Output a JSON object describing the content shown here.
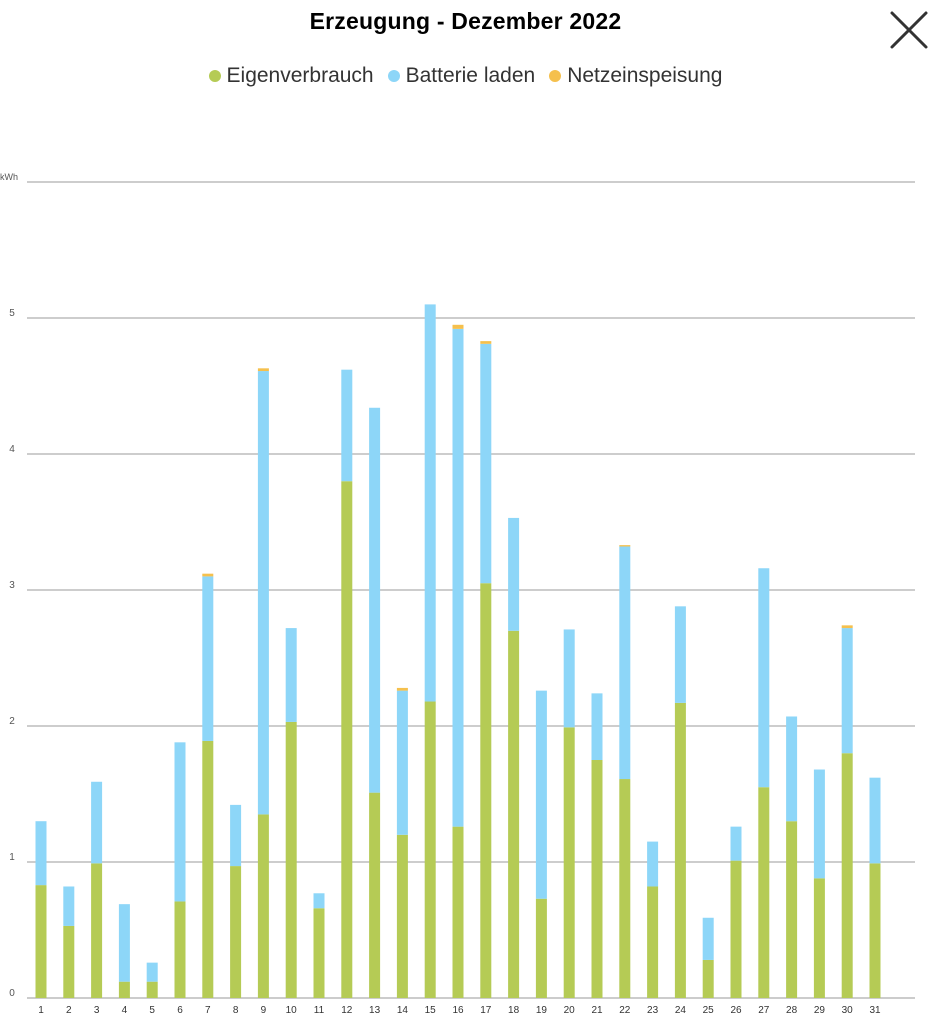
{
  "header": {
    "title": "Erzeugung - Dezember 2022",
    "close_icon": "close-icon"
  },
  "chart_data": {
    "type": "bar",
    "stacked": true,
    "title": "Erzeugung - Dezember 2022",
    "ylabel": "kWh",
    "xlabel": "",
    "ylim": [
      0,
      6
    ],
    "yticks": [
      "0",
      "1",
      "2",
      "3",
      "4",
      "5"
    ],
    "grid": true,
    "legend_position": "top",
    "categories": [
      "1",
      "2",
      "3",
      "4",
      "5",
      "6",
      "7",
      "8",
      "9",
      "10",
      "11",
      "12",
      "13",
      "14",
      "15",
      "16",
      "17",
      "18",
      "19",
      "20",
      "21",
      "22",
      "23",
      "24",
      "25",
      "26",
      "27",
      "28",
      "29",
      "30",
      "31"
    ],
    "series": [
      {
        "name": "Eigenverbrauch",
        "color": "#b5cb55",
        "values": [
          0.83,
          0.53,
          0.99,
          0.12,
          0.12,
          0.71,
          1.89,
          0.97,
          1.35,
          2.03,
          0.66,
          3.8,
          1.51,
          1.2,
          2.18,
          1.26,
          3.05,
          2.7,
          0.73,
          1.99,
          1.75,
          1.61,
          0.82,
          2.17,
          0.28,
          1.01,
          1.55,
          1.3,
          0.88,
          1.8,
          0.99
        ]
      },
      {
        "name": "Batterie laden",
        "color": "#8dd6f8",
        "values": [
          0.47,
          0.29,
          0.6,
          0.57,
          0.14,
          1.17,
          1.21,
          0.45,
          3.26,
          0.69,
          0.11,
          0.82,
          2.83,
          1.06,
          2.92,
          3.66,
          1.76,
          0.83,
          1.53,
          0.72,
          0.49,
          1.71,
          0.33,
          0.71,
          0.31,
          0.25,
          1.61,
          0.77,
          0.8,
          0.92,
          0.63
        ]
      },
      {
        "name": "Netzeinspeisung",
        "color": "#f5c04d",
        "values": [
          0,
          0,
          0,
          0,
          0,
          0,
          0.02,
          0,
          0.02,
          0,
          0,
          0,
          0,
          0.02,
          0,
          0.03,
          0.02,
          0,
          0,
          0,
          0,
          0.01,
          0,
          0,
          0,
          0,
          0,
          0,
          0,
          0.02,
          0
        ]
      }
    ]
  }
}
